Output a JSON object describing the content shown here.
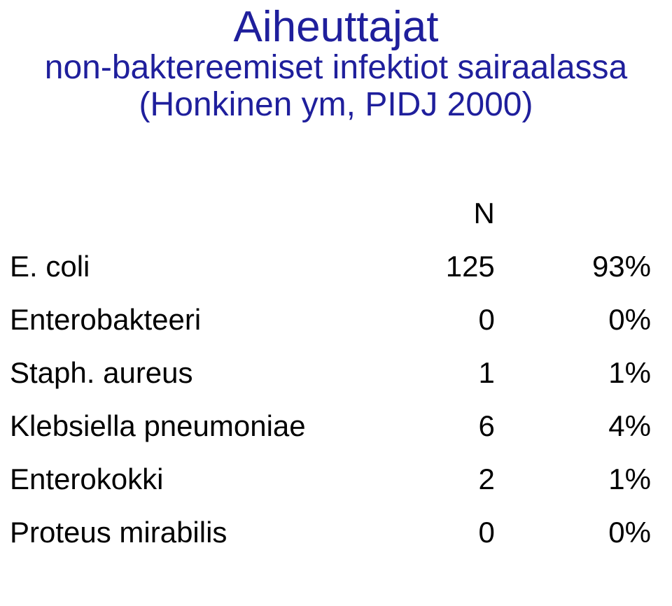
{
  "title": "Aiheuttajat",
  "subtitle_line1": "non-baktereemiset infektiot sairaalassa",
  "subtitle_line2": "(Honkinen ym, PIDJ 2000)",
  "colors": {
    "heading": "#1f1f9c",
    "body_text": "#000000",
    "background": "#ffffff"
  },
  "typography": {
    "title_fontsize": 62,
    "subtitle_fontsize": 48,
    "body_fontsize": 42,
    "font_family": "Arial"
  },
  "table": {
    "type": "table",
    "header": {
      "col1": "",
      "col2": "N",
      "col3": ""
    },
    "rows": [
      {
        "name": "E. coli",
        "count": "125",
        "pct": "93%"
      },
      {
        "name": "Enterobakteeri",
        "count": "0",
        "pct": "0%"
      },
      {
        "name": "Staph. aureus",
        "count": "1",
        "pct": "1%"
      },
      {
        "name": "Klebsiella pneumoniae",
        "count": "6",
        "pct": "4%"
      },
      {
        "name": "Enterokokki",
        "count": "2",
        "pct": "1%"
      },
      {
        "name": "Proteus mirabilis",
        "count": "0",
        "pct": "0%"
      }
    ]
  }
}
